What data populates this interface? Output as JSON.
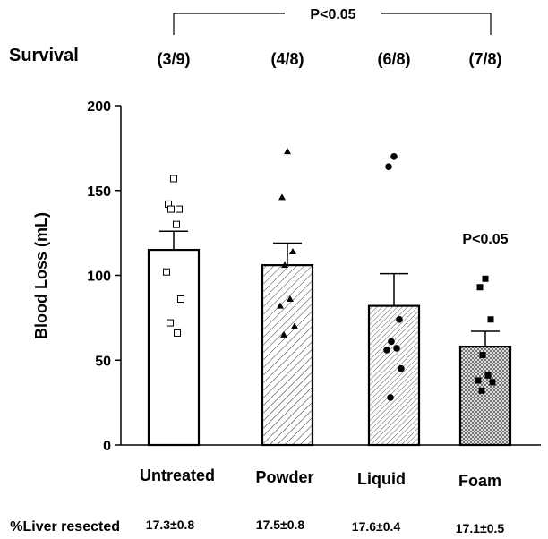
{
  "chart_data": {
    "type": "bar",
    "categories": [
      "Untreated",
      "Powder",
      "Liquid",
      "Foam"
    ],
    "values": [
      115,
      106,
      82,
      58
    ],
    "errors": [
      11,
      13,
      19,
      9
    ],
    "points": [
      [
        157,
        142,
        139,
        139,
        130,
        102,
        86,
        72,
        66
      ],
      [
        173,
        146,
        114,
        106,
        86,
        82,
        70,
        65
      ],
      [
        170,
        164,
        74,
        61,
        57,
        56,
        45,
        28
      ],
      [
        98,
        93,
        74,
        53,
        41,
        38,
        37,
        32
      ]
    ],
    "markers": [
      "open-square",
      "triangle",
      "circle",
      "square"
    ],
    "fills": [
      "none",
      "diagonal-hatch",
      "diagonal-hatch-fine",
      "crosshatch"
    ],
    "ylabel": "Blood Loss (mL)",
    "ylim": [
      0,
      200
    ],
    "yticks": [
      0,
      50,
      100,
      150,
      200
    ],
    "grid": false,
    "survival": {
      "label": "Survival",
      "values": [
        "(3/9)",
        "(4/8)",
        "(6/8)",
        "(7/8)"
      ]
    },
    "comparison_label": "P<0.05",
    "foam_label": "P<0.05",
    "liver_resected": {
      "label": "%Liver resected",
      "values": [
        "17.3±0.8",
        "17.5±0.8",
        "17.6±0.4",
        "17.1±0.5"
      ]
    }
  }
}
